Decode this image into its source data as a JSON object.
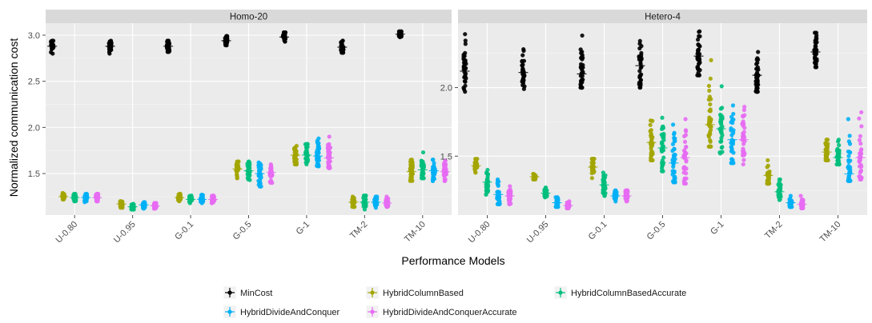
{
  "ylabel": "Normalized communication cost",
  "xlabel": "Performance Models",
  "chart_data": [
    {
      "type": "scatter",
      "title": "Homo-20",
      "categories": [
        "U-0.80",
        "U-0.95",
        "G-0.1",
        "G-0.5",
        "G-1",
        "TM-2",
        "TM-10"
      ],
      "ylim": [
        1.05,
        3.13
      ],
      "yticks": [
        1.5,
        2.0,
        2.5,
        3.0
      ],
      "ytick_labels": [
        "1.5",
        "2.0",
        "2.5",
        "3.0"
      ],
      "grid": true,
      "series": [
        {
          "name": "MinCost",
          "color": "#000000",
          "mean": [
            2.88,
            2.88,
            2.88,
            2.94,
            2.98,
            2.87,
            3.01
          ],
          "lo": [
            2.8,
            2.8,
            2.82,
            2.89,
            2.93,
            2.81,
            2.98
          ],
          "hi": [
            2.94,
            2.94,
            2.94,
            2.99,
            3.03,
            2.94,
            3.04
          ]
        },
        {
          "name": "HybridColumnBased",
          "color": "#A3A500",
          "mean": [
            1.25,
            1.17,
            1.24,
            1.55,
            1.7,
            1.19,
            1.52
          ],
          "lo": [
            1.22,
            1.13,
            1.2,
            1.45,
            1.6,
            1.14,
            1.42
          ],
          "hi": [
            1.29,
            1.2,
            1.28,
            1.63,
            1.8,
            1.25,
            1.65
          ]
        },
        {
          "name": "HybridColumnBasedAccurate",
          "color": "#00BF7D",
          "mean": [
            1.24,
            1.14,
            1.22,
            1.53,
            1.7,
            1.19,
            1.54
          ],
          "lo": [
            1.2,
            1.11,
            1.18,
            1.43,
            1.6,
            1.11,
            1.45
          ],
          "hi": [
            1.28,
            1.17,
            1.26,
            1.63,
            1.82,
            1.26,
            1.73
          ]
        },
        {
          "name": "HybridDivideAndConquer",
          "color": "#00B0F6",
          "mean": [
            1.24,
            1.16,
            1.22,
            1.5,
            1.69,
            1.19,
            1.53
          ],
          "lo": [
            1.19,
            1.12,
            1.18,
            1.36,
            1.58,
            1.13,
            1.42
          ],
          "hi": [
            1.28,
            1.19,
            1.27,
            1.62,
            1.88,
            1.25,
            1.65
          ]
        },
        {
          "name": "HybridDivideAndConquerAccurate",
          "color": "#E76BF3",
          "mean": [
            1.24,
            1.15,
            1.22,
            1.51,
            1.67,
            1.18,
            1.52
          ],
          "lo": [
            1.2,
            1.12,
            1.18,
            1.4,
            1.56,
            1.14,
            1.42
          ],
          "hi": [
            1.28,
            1.18,
            1.26,
            1.6,
            1.9,
            1.25,
            1.64
          ]
        }
      ]
    },
    {
      "type": "scatter",
      "title": "Hetero-4",
      "categories": [
        "U-0.80",
        "U-0.95",
        "G-0.1",
        "G-0.5",
        "G-1",
        "TM-2",
        "TM-10"
      ],
      "ylim": [
        1.07,
        2.47
      ],
      "yticks": [
        1.5,
        2.0
      ],
      "ytick_labels": [
        "1.5",
        "2.0"
      ],
      "grid": true,
      "series": [
        {
          "name": "MinCost",
          "color": "#000000",
          "mean": [
            2.12,
            2.11,
            2.1,
            2.16,
            2.23,
            2.09,
            2.26
          ],
          "lo": [
            1.97,
            1.99,
            2.0,
            2.0,
            2.09,
            1.97,
            2.15
          ],
          "hi": [
            2.39,
            2.28,
            2.38,
            2.34,
            2.41,
            2.26,
            2.4
          ]
        },
        {
          "name": "HybridColumnBased",
          "color": "#A3A500",
          "mean": [
            1.43,
            1.35,
            1.42,
            1.6,
            1.73,
            1.36,
            1.53
          ],
          "lo": [
            1.38,
            1.33,
            1.34,
            1.47,
            1.57,
            1.3,
            1.47
          ],
          "hi": [
            1.48,
            1.37,
            1.48,
            1.76,
            2.2,
            1.47,
            1.62
          ]
        },
        {
          "name": "HybridColumnBasedAccurate",
          "color": "#00BF7D",
          "mean": [
            1.31,
            1.23,
            1.29,
            1.56,
            1.7,
            1.24,
            1.49
          ],
          "lo": [
            1.22,
            1.2,
            1.21,
            1.39,
            1.52,
            1.18,
            1.44
          ],
          "hi": [
            1.4,
            1.27,
            1.38,
            1.78,
            2.01,
            1.33,
            1.62
          ]
        },
        {
          "name": "HybridDivideAndConquer",
          "color": "#00B0F6",
          "mean": [
            1.22,
            1.16,
            1.21,
            1.45,
            1.62,
            1.16,
            1.37
          ],
          "lo": [
            1.15,
            1.13,
            1.17,
            1.31,
            1.45,
            1.13,
            1.32
          ],
          "hi": [
            1.33,
            1.2,
            1.25,
            1.73,
            1.87,
            1.21,
            1.77
          ]
        },
        {
          "name": "HybridDivideAndConquerAccurate",
          "color": "#E76BF3",
          "mean": [
            1.21,
            1.14,
            1.21,
            1.49,
            1.62,
            1.15,
            1.49
          ],
          "lo": [
            1.15,
            1.12,
            1.17,
            1.3,
            1.44,
            1.12,
            1.33
          ],
          "hi": [
            1.28,
            1.17,
            1.25,
            1.77,
            1.86,
            1.21,
            1.82
          ]
        }
      ]
    }
  ],
  "legend": {
    "placement": "bottom",
    "items": [
      {
        "label": "MinCost",
        "color": "#000000"
      },
      {
        "label": "HybridColumnBased",
        "color": "#A3A500"
      },
      {
        "label": "HybridColumnBasedAccurate",
        "color": "#00BF7D"
      },
      {
        "label": "HybridDivideAndConquer",
        "color": "#00B0F6"
      },
      {
        "label": "HybridDivideAndConquerAccurate",
        "color": "#E76BF3"
      }
    ]
  }
}
